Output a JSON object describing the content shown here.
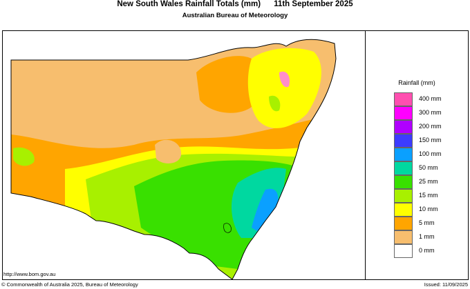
{
  "header": {
    "title": "New South Wales Rainfall Totals (mm)      11th September 2025",
    "subtitle": "Australian Bureau of Meteorology"
  },
  "legend": {
    "title": "Rainfall (mm)",
    "items": [
      {
        "label": "400 mm",
        "color": "#ff4fb0"
      },
      {
        "label": "300 mm",
        "color": "#ff00ff"
      },
      {
        "label": "200 mm",
        "color": "#b000ff"
      },
      {
        "label": "150 mm",
        "color": "#3c3cff"
      },
      {
        "label": "100 mm",
        "color": "#0aa0ff"
      },
      {
        "label": "50 mm",
        "color": "#00d8a0"
      },
      {
        "label": "25 mm",
        "color": "#39e000"
      },
      {
        "label": "15 mm",
        "color": "#a8f000"
      },
      {
        "label": "10 mm",
        "color": "#ffff00"
      },
      {
        "label": "5 mm",
        "color": "#ffa500"
      },
      {
        "label": "1 mm",
        "color": "#f7be6e"
      },
      {
        "label": "0 mm",
        "color": "#ffffff"
      }
    ]
  },
  "footer": {
    "url": "http://www.bom.gov.au",
    "copyright": "© Commonwealth of Australia 2025, Bureau of Meteorology",
    "issued": "Issued: 11/09/2025"
  }
}
